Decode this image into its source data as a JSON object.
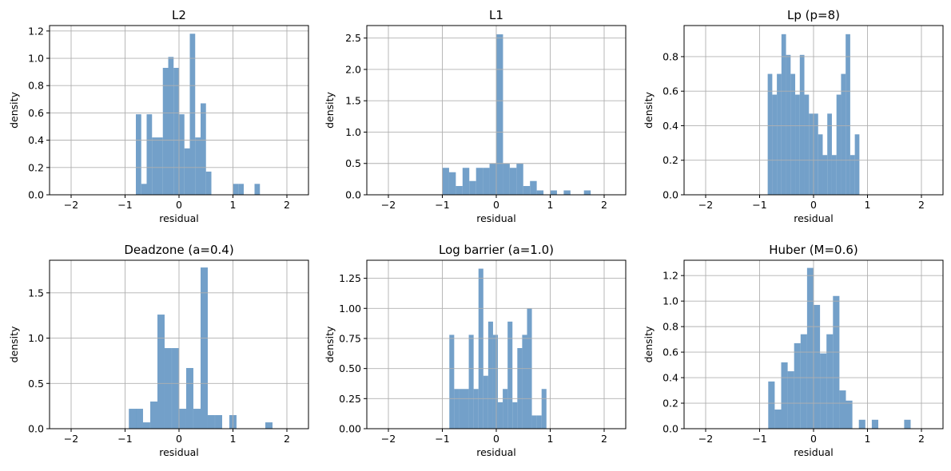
{
  "chart_data": [
    {
      "type": "bar",
      "title": "L2",
      "xlabel": "residual",
      "ylabel": "density",
      "xlim": [
        -2.4,
        2.4
      ],
      "ylim": [
        0,
        1.24
      ],
      "xticks": [
        -2,
        -1,
        0,
        1,
        2
      ],
      "yticks": [
        0.0,
        0.2,
        0.4,
        0.6,
        0.8,
        1.0,
        1.2
      ],
      "ytick_labels": [
        "0.0",
        "0.2",
        "0.4",
        "0.6",
        "0.8",
        "1.0",
        "1.2"
      ],
      "grid": true,
      "bin_width": 0.1,
      "bins": [
        [
          -0.8,
          0.59
        ],
        [
          -0.7,
          0.08
        ],
        [
          -0.6,
          0.59
        ],
        [
          -0.5,
          0.42
        ],
        [
          -0.4,
          0.42
        ],
        [
          -0.3,
          0.93
        ],
        [
          -0.2,
          1.01
        ],
        [
          -0.1,
          0.93
        ],
        [
          0.0,
          0.59
        ],
        [
          0.1,
          0.34
        ],
        [
          0.2,
          1.18
        ],
        [
          0.3,
          0.42
        ],
        [
          0.4,
          0.67
        ],
        [
          0.5,
          0.17
        ],
        [
          1.0,
          0.08
        ],
        [
          1.1,
          0.08
        ],
        [
          1.4,
          0.08
        ]
      ]
    },
    {
      "type": "bar",
      "title": "L1",
      "xlabel": "residual",
      "ylabel": "density",
      "xlim": [
        -2.4,
        2.4
      ],
      "ylim": [
        0,
        2.7
      ],
      "xticks": [
        -2,
        -1,
        0,
        1,
        2
      ],
      "yticks": [
        0.0,
        0.5,
        1.0,
        1.5,
        2.0,
        2.5
      ],
      "ytick_labels": [
        "0.0",
        "0.5",
        "1.0",
        "1.5",
        "2.0",
        "2.5"
      ],
      "grid": true,
      "bin_width": 0.125,
      "bins": [
        [
          -1.0,
          0.43
        ],
        [
          -0.875,
          0.36
        ],
        [
          -0.75,
          0.14
        ],
        [
          -0.625,
          0.43
        ],
        [
          -0.5,
          0.22
        ],
        [
          -0.375,
          0.43
        ],
        [
          -0.25,
          0.43
        ],
        [
          -0.125,
          0.5
        ],
        [
          0.0,
          2.56
        ],
        [
          0.125,
          0.5
        ],
        [
          0.25,
          0.43
        ],
        [
          0.375,
          0.5
        ],
        [
          0.5,
          0.14
        ],
        [
          0.625,
          0.22
        ],
        [
          0.75,
          0.07
        ],
        [
          1.0,
          0.07
        ],
        [
          1.25,
          0.07
        ],
        [
          1.625,
          0.07
        ]
      ]
    },
    {
      "type": "bar",
      "title": "Lp (p=8)",
      "xlabel": "residual",
      "ylabel": "density",
      "xlim": [
        -2.4,
        2.4
      ],
      "ylim": [
        0,
        0.98
      ],
      "xticks": [
        -2,
        -1,
        0,
        1,
        2
      ],
      "yticks": [
        0.0,
        0.2,
        0.4,
        0.6,
        0.8
      ],
      "ytick_labels": [
        "0.0",
        "0.2",
        "0.4",
        "0.6",
        "0.8"
      ],
      "grid": true,
      "bin_width": 0.085,
      "bins": [
        [
          -0.85,
          0.7
        ],
        [
          -0.765,
          0.58
        ],
        [
          -0.68,
          0.7
        ],
        [
          -0.595,
          0.93
        ],
        [
          -0.51,
          0.81
        ],
        [
          -0.425,
          0.7
        ],
        [
          -0.34,
          0.58
        ],
        [
          -0.255,
          0.81
        ],
        [
          -0.17,
          0.58
        ],
        [
          -0.085,
          0.47
        ],
        [
          0.0,
          0.47
        ],
        [
          0.085,
          0.35
        ],
        [
          0.17,
          0.23
        ],
        [
          0.255,
          0.47
        ],
        [
          0.34,
          0.23
        ],
        [
          0.425,
          0.58
        ],
        [
          0.51,
          0.7
        ],
        [
          0.595,
          0.93
        ],
        [
          0.68,
          0.23
        ],
        [
          0.765,
          0.35
        ]
      ]
    },
    {
      "type": "bar",
      "title": "Deadzone (a=0.4)",
      "xlabel": "residual",
      "ylabel": "density",
      "xlim": [
        -2.4,
        2.4
      ],
      "ylim": [
        0,
        1.86
      ],
      "xticks": [
        -2,
        -1,
        0,
        1,
        2
      ],
      "yticks": [
        0.0,
        0.5,
        1.0,
        1.5
      ],
      "ytick_labels": [
        "0.0",
        "0.5",
        "1.0",
        "1.5"
      ],
      "grid": true,
      "bin_width": 0.133,
      "bins": [
        [
          -0.93,
          0.22
        ],
        [
          -0.8,
          0.22
        ],
        [
          -0.667,
          0.07
        ],
        [
          -0.533,
          0.3
        ],
        [
          -0.4,
          1.26
        ],
        [
          -0.267,
          0.89
        ],
        [
          -0.133,
          0.89
        ],
        [
          0.0,
          0.22
        ],
        [
          0.133,
          0.67
        ],
        [
          0.267,
          0.22
        ],
        [
          0.4,
          1.78
        ],
        [
          0.533,
          0.15
        ],
        [
          0.667,
          0.15
        ],
        [
          0.933,
          0.15
        ],
        [
          1.6,
          0.07
        ]
      ]
    },
    {
      "type": "bar",
      "title": "Log barrier (a=1.0)",
      "xlabel": "residual",
      "ylabel": "density",
      "xlim": [
        -2.4,
        2.4
      ],
      "ylim": [
        0,
        1.4
      ],
      "xticks": [
        -2,
        -1,
        0,
        1,
        2
      ],
      "yticks": [
        0.0,
        0.25,
        0.5,
        0.75,
        1.0,
        1.25
      ],
      "ytick_labels": [
        "0.00",
        "0.25",
        "0.50",
        "0.75",
        "1.00",
        "1.25"
      ],
      "grid": true,
      "bin_width": 0.09,
      "bins": [
        [
          -0.87,
          0.78
        ],
        [
          -0.78,
          0.33
        ],
        [
          -0.69,
          0.33
        ],
        [
          -0.6,
          0.33
        ],
        [
          -0.51,
          0.78
        ],
        [
          -0.42,
          0.33
        ],
        [
          -0.33,
          1.33
        ],
        [
          -0.24,
          0.44
        ],
        [
          -0.15,
          0.89
        ],
        [
          -0.06,
          0.78
        ],
        [
          0.03,
          0.22
        ],
        [
          0.12,
          0.33
        ],
        [
          0.21,
          0.89
        ],
        [
          0.3,
          0.22
        ],
        [
          0.39,
          0.67
        ],
        [
          0.48,
          0.78
        ],
        [
          0.57,
          1.0
        ],
        [
          0.66,
          0.11
        ],
        [
          0.75,
          0.11
        ],
        [
          0.84,
          0.33
        ]
      ]
    },
    {
      "type": "bar",
      "title": "Huber (M=0.6)",
      "xlabel": "residual",
      "ylabel": "density",
      "xlim": [
        -2.4,
        2.4
      ],
      "ylim": [
        0,
        1.32
      ],
      "xticks": [
        -2,
        -1,
        0,
        1,
        2
      ],
      "yticks": [
        0.0,
        0.2,
        0.4,
        0.6,
        0.8,
        1.0,
        1.2
      ],
      "ytick_labels": [
        "0.0",
        "0.2",
        "0.4",
        "0.6",
        "0.8",
        "1.0",
        "1.2"
      ],
      "grid": true,
      "bin_width": 0.12,
      "bins": [
        [
          -0.84,
          0.37
        ],
        [
          -0.72,
          0.15
        ],
        [
          -0.6,
          0.52
        ],
        [
          -0.48,
          0.45
        ],
        [
          -0.36,
          0.67
        ],
        [
          -0.24,
          0.74
        ],
        [
          -0.12,
          1.26
        ],
        [
          0.0,
          0.97
        ],
        [
          0.12,
          0.59
        ],
        [
          0.24,
          0.74
        ],
        [
          0.36,
          1.04
        ],
        [
          0.48,
          0.3
        ],
        [
          0.6,
          0.22
        ],
        [
          0.84,
          0.07
        ],
        [
          1.08,
          0.07
        ],
        [
          1.68,
          0.07
        ]
      ]
    }
  ],
  "colors": {
    "bar": "#5b8fbf",
    "grid": "#b0b0b0",
    "axes": "#000000"
  }
}
